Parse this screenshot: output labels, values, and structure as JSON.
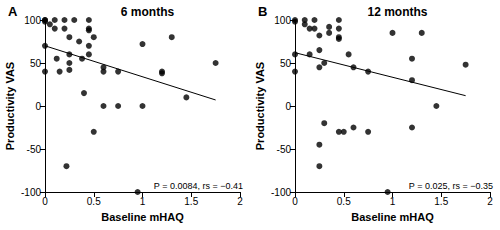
{
  "chart_data": [
    {
      "type": "scatter",
      "panel_label": "A",
      "title": "6 months",
      "x_label": "Baseline mHAQ",
      "y_label": "Productivity VAS",
      "annotation": "P = 0.0084, rs = −0.41",
      "color": "#000000",
      "marker": "circle",
      "grid": false,
      "xlim": [
        0,
        2
      ],
      "xticks": [
        0,
        0.5,
        1,
        1.5,
        2
      ],
      "ylim": [
        -100,
        100
      ],
      "yticks": [
        -100,
        -50,
        0,
        50,
        100
      ],
      "x": [
        0,
        0,
        0,
        0.05,
        0,
        0,
        0.1,
        0.1,
        0.12,
        0.15,
        0.2,
        0.2,
        0.25,
        0.25,
        0.25,
        0.25,
        0.22,
        0.3,
        0.35,
        0.38,
        0.4,
        0.45,
        0.45,
        0.45,
        0.45,
        0.45,
        0.5,
        0.5,
        0.6,
        0.6,
        0.6,
        0.75,
        0.75,
        0.95,
        1.0,
        1.0,
        1.2,
        1.2,
        1.3,
        1.45,
        1.75
      ],
      "values": [
        100,
        100,
        98,
        95,
        70,
        40,
        100,
        90,
        55,
        40,
        100,
        90,
        80,
        60,
        50,
        42,
        -70,
        100,
        75,
        55,
        15,
        100,
        90,
        88,
        70,
        60,
        80,
        -30,
        45,
        40,
        0,
        40,
        0,
        -100,
        72,
        0,
        40,
        38,
        80,
        10,
        50
      ],
      "fit_line": {
        "x": [
          0,
          1.75
        ],
        "values": [
          70,
          7
        ]
      }
    },
    {
      "type": "scatter",
      "panel_label": "B",
      "title": "12 months",
      "x_label": "Baseline mHAQ",
      "y_label": "Productivity VAS",
      "annotation": "P = 0.025, rs = −0.35",
      "color": "#000000",
      "marker": "circle",
      "grid": false,
      "xlim": [
        0,
        2
      ],
      "xticks": [
        0,
        0.5,
        1,
        1.5,
        2
      ],
      "ylim": [
        -100,
        100
      ],
      "yticks": [
        -100,
        -50,
        0,
        50,
        100
      ],
      "x": [
        0,
        0,
        0,
        0,
        0.1,
        0.1,
        0.15,
        0.15,
        0.2,
        0.2,
        0.25,
        0.25,
        0.25,
        0.25,
        0.25,
        0.3,
        0.3,
        0.35,
        0.35,
        0.45,
        0.45,
        0.45,
        0.45,
        0.45,
        0.5,
        0.55,
        0.6,
        0.6,
        0.75,
        0.75,
        0.95,
        1.0,
        1.2,
        1.2,
        1.2,
        1.3,
        1.45,
        1.75
      ],
      "values": [
        100,
        98,
        60,
        40,
        100,
        95,
        90,
        60,
        100,
        90,
        82,
        65,
        45,
        -45,
        -70,
        50,
        -20,
        92,
        85,
        100,
        90,
        80,
        78,
        -30,
        -30,
        60,
        45,
        -25,
        40,
        -30,
        -100,
        85,
        55,
        30,
        -25,
        85,
        0,
        48
      ],
      "fit_line": {
        "x": [
          0,
          1.75
        ],
        "values": [
          62,
          12
        ]
      }
    }
  ]
}
